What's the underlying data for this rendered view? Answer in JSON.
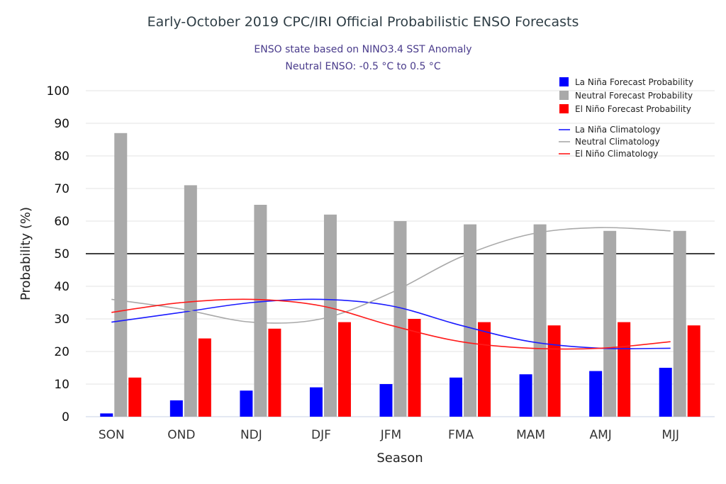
{
  "chart_data": {
    "type": "bar",
    "title": "Early-October 2019 CPC/IRI Official Probabilistic ENSO Forecasts",
    "subtitle_lines": [
      "ENSO state based on NINO3.4 SST Anomaly",
      "Neutral ENSO: -0.5 °C to 0.5 °C"
    ],
    "xlabel": "Season",
    "ylabel": "Probability (%)",
    "ylim": [
      0,
      100
    ],
    "yticks": [
      0,
      10,
      20,
      30,
      40,
      50,
      60,
      70,
      80,
      90,
      100
    ],
    "reference_line": 50,
    "categories": [
      "SON",
      "OND",
      "NDJ",
      "DJF",
      "JFM",
      "FMA",
      "MAM",
      "AMJ",
      "MJJ"
    ],
    "series": [
      {
        "name": "La Niña Forecast Probability",
        "color": "#0000ff",
        "values": [
          1,
          5,
          8,
          9,
          10,
          12,
          13,
          14,
          15
        ]
      },
      {
        "name": "Neutral Forecast Probability",
        "color": "#a9a9a9",
        "values": [
          87,
          71,
          65,
          62,
          60,
          59,
          59,
          57,
          57
        ]
      },
      {
        "name": "El Niño Forecast Probability",
        "color": "#ff0000",
        "values": [
          12,
          24,
          27,
          29,
          30,
          29,
          28,
          29,
          28
        ]
      }
    ],
    "climatology": [
      {
        "name": "La Niña Climatology",
        "color": "#1a1aff",
        "values": [
          29,
          32,
          35,
          36,
          34,
          28,
          23,
          21,
          21
        ]
      },
      {
        "name": "Neutral Climatology",
        "color": "#a9a9a9",
        "values": [
          36,
          33,
          29,
          30,
          38,
          49,
          56,
          58,
          57
        ]
      },
      {
        "name": "El Niño Climatology",
        "color": "#ff1a1a",
        "values": [
          32,
          35,
          36,
          34,
          28,
          23,
          21,
          21,
          23
        ]
      }
    ],
    "legend_position": "top-right"
  }
}
